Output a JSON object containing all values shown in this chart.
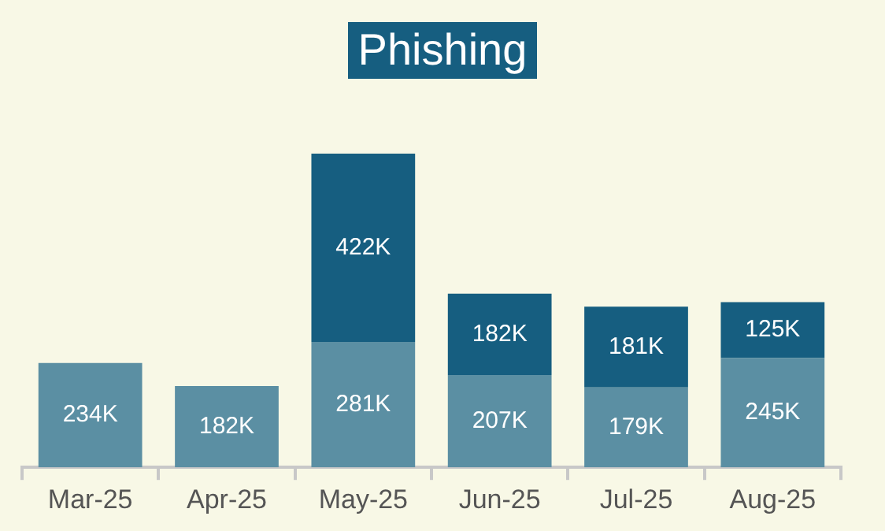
{
  "chart_data": {
    "type": "bar",
    "title": "Phishing",
    "stacked": true,
    "categories": [
      "Mar-25",
      "Apr-25",
      "May-25",
      "Jun-25",
      "Jul-25",
      "Aug-25"
    ],
    "series": [
      {
        "color": "#5b8fa3",
        "values": [
          234,
          182,
          281,
          207,
          179,
          245
        ],
        "value_labels": [
          "234K",
          "182K",
          "281K",
          "207K",
          "179K",
          "245K"
        ]
      },
      {
        "color": "#165e80",
        "values": [
          null,
          null,
          422,
          182,
          181,
          125
        ],
        "value_labels": [
          null,
          null,
          "422K",
          "182K",
          "181K",
          "125K"
        ]
      }
    ]
  }
}
